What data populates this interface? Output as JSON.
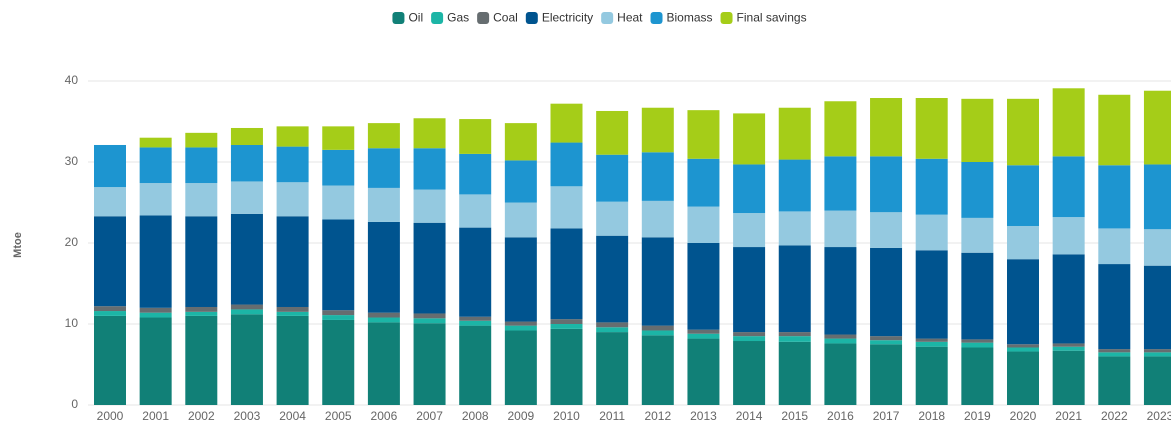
{
  "chart_data": {
    "type": "stacked_bar",
    "y_label": "Mtoe",
    "categories": [
      "2000",
      "2001",
      "2002",
      "2003",
      "2004",
      "2005",
      "2006",
      "2007",
      "2008",
      "2009",
      "2010",
      "2011",
      "2012",
      "2013",
      "2014",
      "2015",
      "2016",
      "2017",
      "2018",
      "2019",
      "2020",
      "2021",
      "2022",
      "2023"
    ],
    "series": [
      {
        "name": "Oil",
        "color": "#118077",
        "values": [
          11.0,
          10.8,
          11.0,
          11.2,
          11.0,
          10.5,
          10.2,
          10.1,
          9.8,
          9.2,
          9.4,
          9.0,
          8.6,
          8.2,
          7.9,
          7.8,
          7.6,
          7.5,
          7.2,
          7.1,
          6.6,
          6.7,
          6.0,
          6.0
        ]
      },
      {
        "name": "Gas",
        "color": "#1cb5a6",
        "values": [
          0.6,
          0.6,
          0.5,
          0.6,
          0.5,
          0.6,
          0.6,
          0.6,
          0.6,
          0.6,
          0.6,
          0.6,
          0.6,
          0.6,
          0.6,
          0.7,
          0.6,
          0.5,
          0.6,
          0.6,
          0.5,
          0.5,
          0.5,
          0.5
        ]
      },
      {
        "name": "Coal",
        "color": "#666d70",
        "values": [
          0.6,
          0.6,
          0.6,
          0.6,
          0.6,
          0.6,
          0.6,
          0.6,
          0.5,
          0.5,
          0.6,
          0.6,
          0.6,
          0.5,
          0.5,
          0.5,
          0.5,
          0.5,
          0.4,
          0.4,
          0.4,
          0.4,
          0.4,
          0.4
        ]
      },
      {
        "name": "Electricity",
        "color": "#00548f",
        "values": [
          11.1,
          11.4,
          11.2,
          11.2,
          11.2,
          11.2,
          11.2,
          11.2,
          11.0,
          10.4,
          11.2,
          10.7,
          10.9,
          10.7,
          10.5,
          10.7,
          10.8,
          10.9,
          10.9,
          10.7,
          10.5,
          11.0,
          10.5,
          10.3
        ]
      },
      {
        "name": "Heat",
        "color": "#94c9e0",
        "values": [
          3.6,
          4.0,
          4.1,
          4.0,
          4.2,
          4.2,
          4.2,
          4.1,
          4.1,
          4.3,
          5.2,
          4.2,
          4.5,
          4.5,
          4.2,
          4.2,
          4.5,
          4.4,
          4.4,
          4.3,
          4.1,
          4.6,
          4.4,
          4.5
        ]
      },
      {
        "name": "Biomass",
        "color": "#1d95d0",
        "values": [
          5.2,
          4.4,
          4.4,
          4.5,
          4.4,
          4.4,
          4.9,
          5.1,
          5.0,
          5.2,
          5.4,
          5.8,
          6.0,
          5.9,
          6.0,
          6.4,
          6.7,
          6.9,
          6.9,
          6.9,
          7.5,
          7.5,
          7.8,
          8.0
        ]
      },
      {
        "name": "Final savings",
        "color": "#a5cd18",
        "values": [
          0,
          1.2,
          1.8,
          2.1,
          2.5,
          2.9,
          3.1,
          3.7,
          4.3,
          4.6,
          4.8,
          5.4,
          5.5,
          6.0,
          6.3,
          6.4,
          6.8,
          7.2,
          7.5,
          7.8,
          8.2,
          8.4,
          8.7,
          9.1
        ]
      }
    ],
    "ylim": [
      0,
      40
    ],
    "yticks": [
      0,
      10,
      20,
      30,
      40
    ],
    "grid": true,
    "legend": "top"
  }
}
